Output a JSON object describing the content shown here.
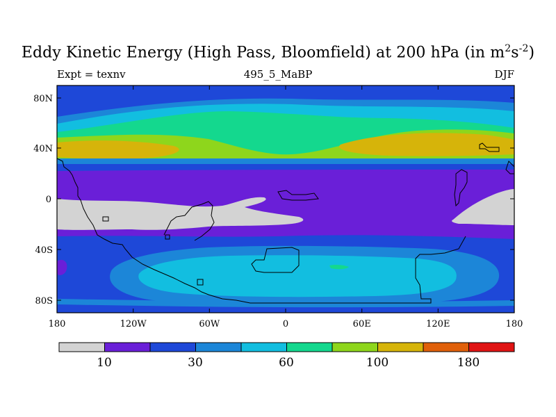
{
  "title": {
    "main": "Eddy Kinetic Energy (High Pass, Bloomfield) at 200 hPa (in m",
    "sup1": "2",
    "mid": "s",
    "sup2": "-2",
    "close": ")"
  },
  "subtitle": {
    "left": "Expt = texnv",
    "center": "495_5_MaBP",
    "right": "DJF"
  },
  "axes": {
    "y_ticks": [
      "80N",
      "40N",
      "0",
      "40S",
      "80S"
    ],
    "x_ticks": [
      "180",
      "120W",
      "60W",
      "0",
      "60E",
      "120E",
      "180"
    ]
  },
  "colorbar": {
    "colors": [
      "#d3d3d3",
      "#6a1fd8",
      "#1e48d8",
      "#1c86d8",
      "#12bee0",
      "#14d88e",
      "#8ed61c",
      "#d6b40a",
      "#e0600a",
      "#e01414"
    ],
    "labels": [
      "10",
      "30",
      "60",
      "100",
      "180"
    ]
  },
  "map_colors": {
    "gray": "#d3d3d3",
    "purple": "#6a1fd8",
    "blue": "#1e48d8",
    "mid_blue": "#1c86d8",
    "cyan": "#12bee0",
    "teal": "#14d88e",
    "green": "#8ed61c",
    "yellow": "#d6b40a"
  }
}
